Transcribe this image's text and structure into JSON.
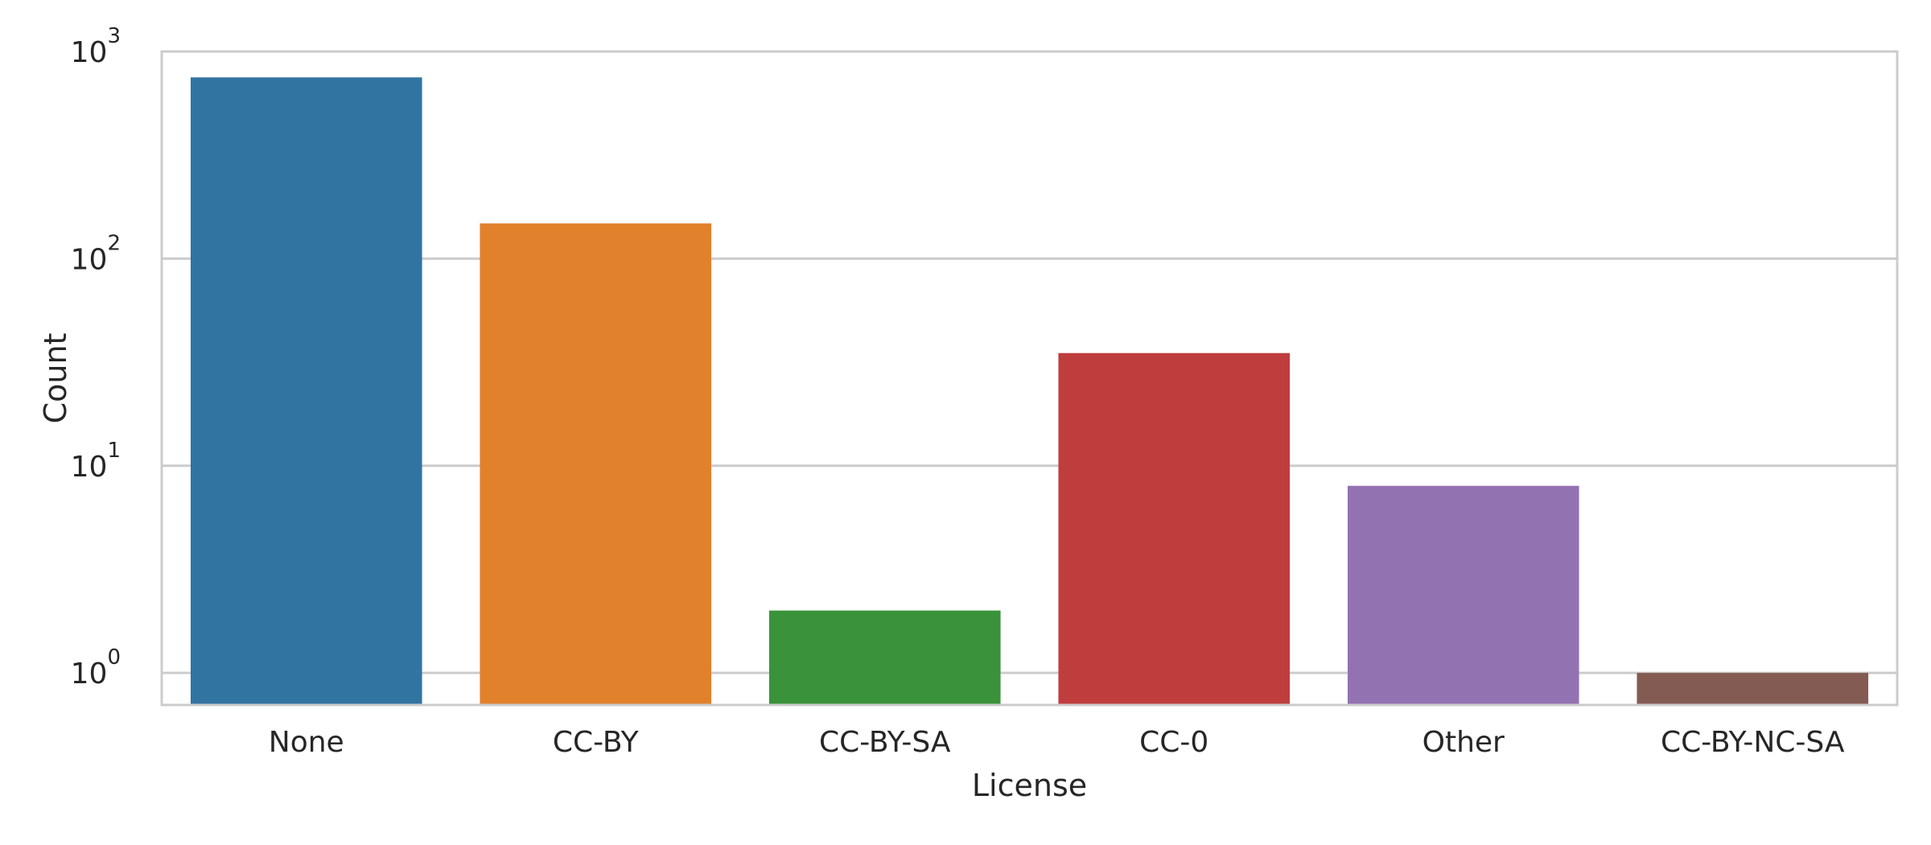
{
  "chart_data": {
    "type": "bar",
    "categories": [
      "None",
      "CC-BY",
      "CC-BY-SA",
      "CC-0",
      "Other",
      "CC-BY-NC-SA"
    ],
    "values": [
      750,
      148,
      2,
      35,
      8,
      1
    ],
    "colors": [
      "#3274a1",
      "#e1812c",
      "#3a923a",
      "#c03d3e",
      "#9372b2",
      "#845b53"
    ],
    "xlabel": "License",
    "ylabel": "Count",
    "yscale": "log",
    "ylim": [
      0.7,
      1000
    ],
    "yticks": [
      {
        "base": "10",
        "exp": "0",
        "value": 1
      },
      {
        "base": "10",
        "exp": "1",
        "value": 10
      },
      {
        "base": "10",
        "exp": "2",
        "value": 100
      },
      {
        "base": "10",
        "exp": "3",
        "value": 1000
      }
    ],
    "grid": "y",
    "legend": "none"
  }
}
